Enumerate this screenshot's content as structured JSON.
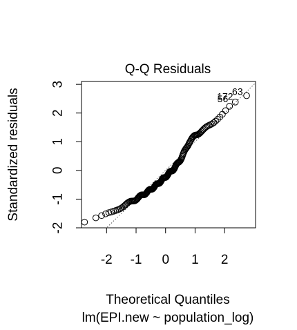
{
  "chart_data": {
    "type": "scatter",
    "title": "Q-Q Residuals",
    "xlabel": "Theoretical Quantiles",
    "ylabel": "Standardized residuals",
    "sub": "lm(EPI.new ~ population_log)",
    "xlim": [
      -2.85,
      3.05
    ],
    "ylim": [
      -2.0,
      3.1
    ],
    "x_ticks": [
      -2,
      -1,
      0,
      1,
      2
    ],
    "y_ticks": [
      -2,
      -1,
      0,
      1,
      2,
      3
    ],
    "x_tick_labels": [
      "-2",
      "-1",
      "0",
      "1",
      "2"
    ],
    "y_tick_labels": [
      "-2",
      "-1",
      "0",
      "1",
      "2",
      "3"
    ],
    "reference_line": {
      "slope": 1.0,
      "intercept": 0.0,
      "style": "dotted"
    },
    "labeled_points": [
      {
        "label": "63",
        "x": 2.76,
        "y": 2.58
      },
      {
        "label": "172",
        "x": 2.43,
        "y": 2.42
      },
      {
        "label": "56",
        "x": 2.26,
        "y": 2.33
      }
    ],
    "n_points": 166,
    "points_description": "sorted standardized residuals vs theoretical normal quantiles"
  }
}
